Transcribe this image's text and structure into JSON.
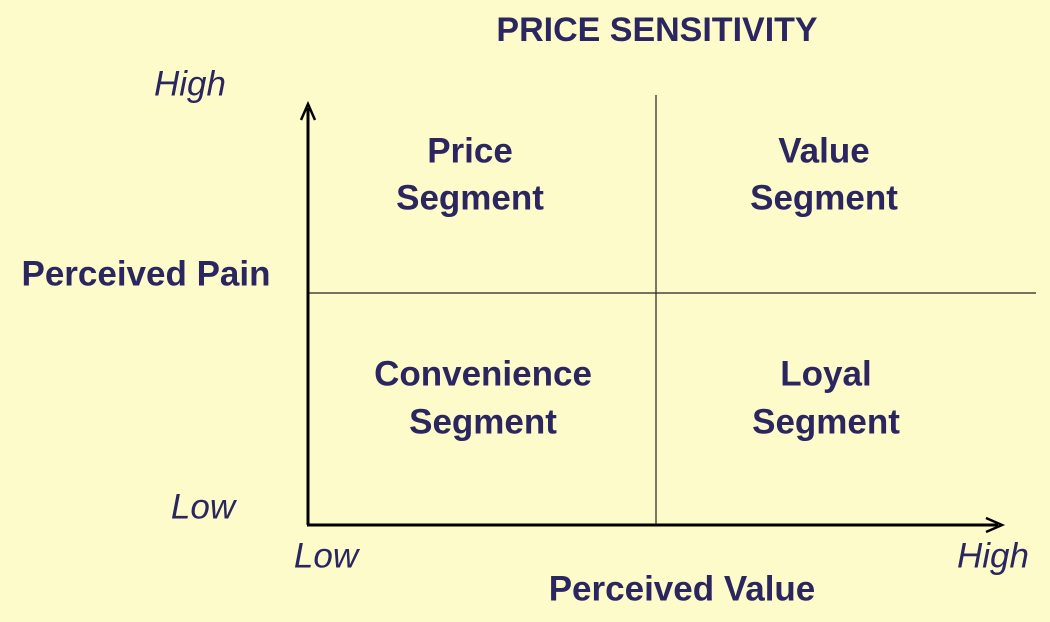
{
  "title": "PRICE SENSITIVITY",
  "y_axis": {
    "label": "Perceived Pain",
    "high": "High",
    "low": "Low"
  },
  "x_axis": {
    "label": "Perceived Value",
    "low": "Low",
    "high": "High"
  },
  "quadrants": [
    {
      "lines": [
        "Price",
        "Segment"
      ]
    },
    {
      "lines": [
        "Value",
        "Segment"
      ]
    },
    {
      "lines": [
        "Convenience",
        "Segment"
      ]
    },
    {
      "lines": [
        "Loyal",
        "Segment"
      ]
    }
  ]
}
